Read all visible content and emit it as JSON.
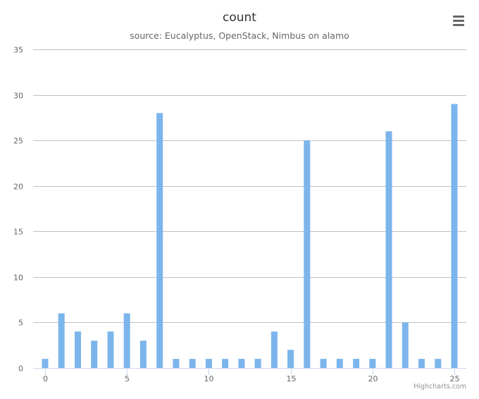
{
  "header": {
    "title": "count",
    "subtitle": "source: Eucalyptus, OpenStack, Nimbus on alamo",
    "menu_icon": "hamburger-menu-icon"
  },
  "credits": "Highcharts.com",
  "colors": {
    "bar": "#7cb5ec",
    "grid": "#c0c0c0",
    "axis": "#ccd6eb",
    "label": "#666666"
  },
  "chart_data": {
    "type": "bar",
    "title": "count",
    "subtitle": "source: Eucalyptus, OpenStack, Nimbus on alamo",
    "x": [
      0,
      1,
      2,
      3,
      4,
      5,
      6,
      7,
      8,
      9,
      10,
      11,
      12,
      13,
      14,
      15,
      16,
      17,
      18,
      19,
      20,
      21,
      22,
      23,
      24,
      25
    ],
    "values": [
      1,
      6,
      4,
      3,
      4,
      6,
      3,
      28,
      1,
      1,
      1,
      1,
      1,
      1,
      4,
      2,
      25,
      1,
      1,
      1,
      1,
      26,
      5,
      1,
      1,
      29
    ],
    "xlim": [
      0,
      25
    ],
    "ylim": [
      0,
      35
    ],
    "xticks": [
      0,
      5,
      10,
      15,
      20,
      25
    ],
    "yticks": [
      0,
      5,
      10,
      15,
      20,
      25,
      30,
      35
    ],
    "grid": true,
    "legend": false
  }
}
